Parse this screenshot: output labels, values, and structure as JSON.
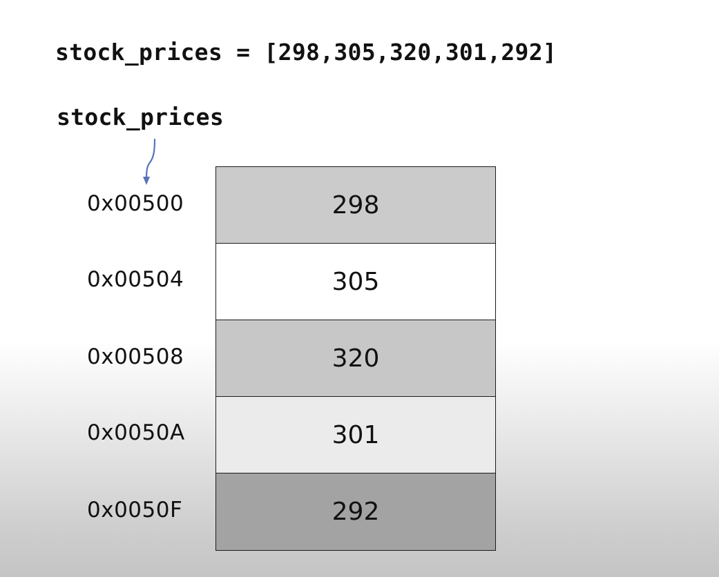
{
  "code": {
    "assignment": "stock_prices = [298,305,320,301,292]"
  },
  "pointer": {
    "variable_name": "stock_prices",
    "arrow_color": "#5873b8"
  },
  "memory": {
    "cells": [
      {
        "address": "0x00500",
        "value": "298",
        "fill": "#cbcbcb"
      },
      {
        "address": "0x00504",
        "value": "305",
        "fill": "#ffffff"
      },
      {
        "address": "0x00508",
        "value": "320",
        "fill": "#c7c7c7"
      },
      {
        "address": "0x0050A",
        "value": "301",
        "fill": "#ebebeb"
      },
      {
        "address": "0x0050F",
        "value": "292",
        "fill": "#a3a3a3"
      }
    ]
  }
}
